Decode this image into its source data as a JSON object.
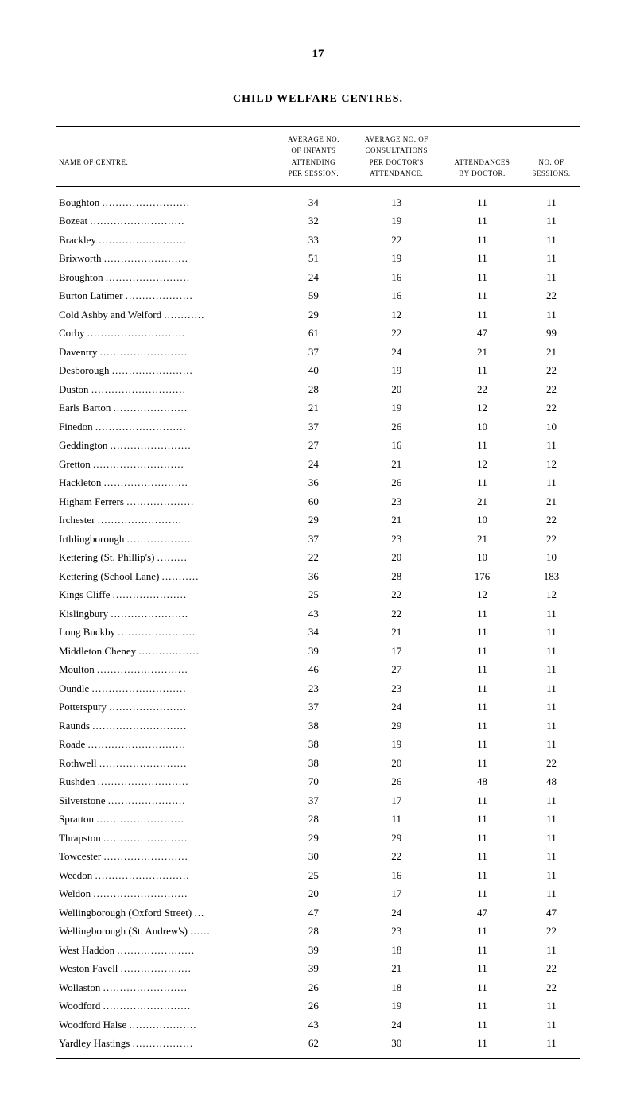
{
  "page_number": "17",
  "title": "CHILD WELFARE CENTRES.",
  "headers": {
    "name": "NAME OF CENTRE.",
    "avg_infants": "AVERAGE NO.<br>OF INFANTS<br>ATTENDING<br>PER SESSION.",
    "avg_consult": "AVERAGE NO. OF<br>CONSULTATIONS<br>PER DOCTOR'S<br>ATTENDANCE.",
    "attendances": "ATTENDANCES<br>BY DOCTOR.",
    "sessions": "NO. OF<br>SESSIONS."
  },
  "rows": [
    {
      "name": "Boughton",
      "c1": 34,
      "c2": 13,
      "c3": 11,
      "c4": 11
    },
    {
      "name": "Bozeat",
      "c1": 32,
      "c2": 19,
      "c3": 11,
      "c4": 11
    },
    {
      "name": "Brackley",
      "c1": 33,
      "c2": 22,
      "c3": 11,
      "c4": 11
    },
    {
      "name": "Brixworth",
      "c1": 51,
      "c2": 19,
      "c3": 11,
      "c4": 11
    },
    {
      "name": "Broughton",
      "c1": 24,
      "c2": 16,
      "c3": 11,
      "c4": 11
    },
    {
      "name": "Burton Latimer",
      "c1": 59,
      "c2": 16,
      "c3": 11,
      "c4": 22
    },
    {
      "name": "Cold Ashby and Welford",
      "c1": 29,
      "c2": 12,
      "c3": 11,
      "c4": 11
    },
    {
      "name": "Corby",
      "c1": 61,
      "c2": 22,
      "c3": 47,
      "c4": 99
    },
    {
      "name": "Daventry",
      "c1": 37,
      "c2": 24,
      "c3": 21,
      "c4": 21
    },
    {
      "name": "Desborough",
      "c1": 40,
      "c2": 19,
      "c3": 11,
      "c4": 22
    },
    {
      "name": "Duston",
      "c1": 28,
      "c2": 20,
      "c3": 22,
      "c4": 22
    },
    {
      "name": "Earls Barton",
      "c1": 21,
      "c2": 19,
      "c3": 12,
      "c4": 22
    },
    {
      "name": "Finedon",
      "c1": 37,
      "c2": 26,
      "c3": 10,
      "c4": 10
    },
    {
      "name": "Geddington",
      "c1": 27,
      "c2": 16,
      "c3": 11,
      "c4": 11
    },
    {
      "name": "Gretton",
      "c1": 24,
      "c2": 21,
      "c3": 12,
      "c4": 12
    },
    {
      "name": "Hackleton",
      "c1": 36,
      "c2": 26,
      "c3": 11,
      "c4": 11
    },
    {
      "name": "Higham Ferrers",
      "c1": 60,
      "c2": 23,
      "c3": 21,
      "c4": 21
    },
    {
      "name": "Irchester",
      "c1": 29,
      "c2": 21,
      "c3": 10,
      "c4": 22
    },
    {
      "name": "Irthlingborough",
      "c1": 37,
      "c2": 23,
      "c3": 21,
      "c4": 22
    },
    {
      "name": "Kettering (St. Phillip's)",
      "c1": 22,
      "c2": 20,
      "c3": 10,
      "c4": 10
    },
    {
      "name": "Kettering (School Lane)",
      "c1": 36,
      "c2": 28,
      "c3": 176,
      "c4": 183
    },
    {
      "name": "Kings Cliffe",
      "c1": 25,
      "c2": 22,
      "c3": 12,
      "c4": 12
    },
    {
      "name": "Kislingbury",
      "c1": 43,
      "c2": 22,
      "c3": 11,
      "c4": 11
    },
    {
      "name": "Long Buckby",
      "c1": 34,
      "c2": 21,
      "c3": 11,
      "c4": 11
    },
    {
      "name": "Middleton Cheney",
      "c1": 39,
      "c2": 17,
      "c3": 11,
      "c4": 11
    },
    {
      "name": "Moulton",
      "c1": 46,
      "c2": 27,
      "c3": 11,
      "c4": 11
    },
    {
      "name": "Oundle",
      "c1": 23,
      "c2": 23,
      "c3": 11,
      "c4": 11
    },
    {
      "name": "Potterspury",
      "c1": 37,
      "c2": 24,
      "c3": 11,
      "c4": 11
    },
    {
      "name": "Raunds",
      "c1": 38,
      "c2": 29,
      "c3": 11,
      "c4": 11
    },
    {
      "name": "Roade",
      "c1": 38,
      "c2": 19,
      "c3": 11,
      "c4": 11
    },
    {
      "name": "Rothwell",
      "c1": 38,
      "c2": 20,
      "c3": 11,
      "c4": 22
    },
    {
      "name": "Rushden",
      "c1": 70,
      "c2": 26,
      "c3": 48,
      "c4": 48
    },
    {
      "name": "Silverstone",
      "c1": 37,
      "c2": 17,
      "c3": 11,
      "c4": 11
    },
    {
      "name": "Spratton",
      "c1": 28,
      "c2": 11,
      "c3": 11,
      "c4": 11
    },
    {
      "name": "Thrapston",
      "c1": 29,
      "c2": 29,
      "c3": 11,
      "c4": 11
    },
    {
      "name": "Towcester",
      "c1": 30,
      "c2": 22,
      "c3": 11,
      "c4": 11
    },
    {
      "name": "Weedon",
      "c1": 25,
      "c2": 16,
      "c3": 11,
      "c4": 11
    },
    {
      "name": "Weldon",
      "c1": 20,
      "c2": 17,
      "c3": 11,
      "c4": 11
    },
    {
      "name": "Wellingborough (Oxford Street)",
      "dots": "...",
      "c1": 47,
      "c2": 24,
      "c3": 47,
      "c4": 47
    },
    {
      "name": "Wellingborough (St. Andrew's)",
      "dots": "......",
      "c1": 28,
      "c2": 23,
      "c3": 11,
      "c4": 22
    },
    {
      "name": "West Haddon",
      "c1": 39,
      "c2": 18,
      "c3": 11,
      "c4": 11
    },
    {
      "name": "Weston Favell",
      "c1": 39,
      "c2": 21,
      "c3": 11,
      "c4": 22
    },
    {
      "name": "Wollaston",
      "c1": 26,
      "c2": 18,
      "c3": 11,
      "c4": 22
    },
    {
      "name": "Woodford",
      "c1": 26,
      "c2": 19,
      "c3": 11,
      "c4": 11
    },
    {
      "name": "Woodford Halse",
      "c1": 43,
      "c2": 24,
      "c3": 11,
      "c4": 11
    },
    {
      "name": "Yardley Hastings",
      "c1": 62,
      "c2": 30,
      "c3": 11,
      "c4": 11
    }
  ],
  "style": {
    "body_bg": "#ffffff",
    "text_color": "#000000",
    "rule_color": "#000000",
    "font_family": "Georgia, 'Times New Roman', serif",
    "title_fontsize": 14,
    "header_fontsize": 9,
    "data_fontsize": 13
  }
}
